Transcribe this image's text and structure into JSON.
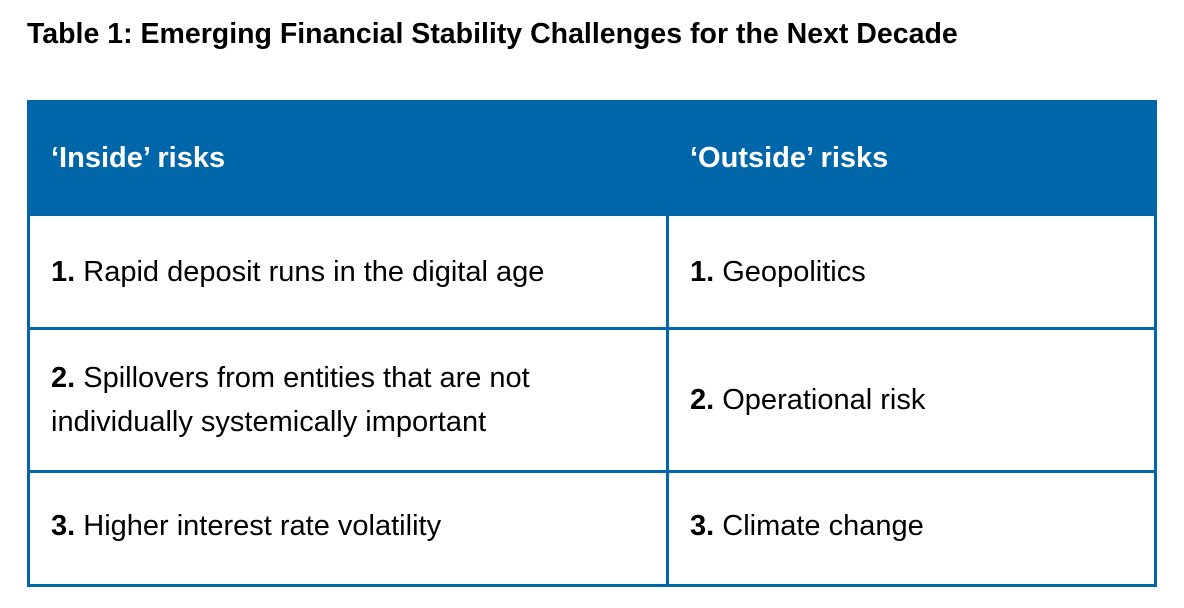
{
  "title": "Table 1: Emerging Financial Stability Challenges for the Next Decade",
  "headers": [
    "‘Inside’ risks",
    "‘Outside’ risks"
  ],
  "rows": [
    {
      "inside_num": "1.",
      "inside": "Rapid deposit runs in the digital age",
      "outside_num": "1.",
      "outside": "Geopolitics"
    },
    {
      "inside_num": "2.",
      "inside": "Spillovers from entities that are not individually systemically important",
      "outside_num": "2.",
      "outside": "Operational risk"
    },
    {
      "inside_num": "3.",
      "inside": "Higher interest rate volatility",
      "outside_num": "3.",
      "outside": "Climate change"
    }
  ],
  "colors": {
    "header": "#0066aa",
    "border": "#0066aa"
  }
}
